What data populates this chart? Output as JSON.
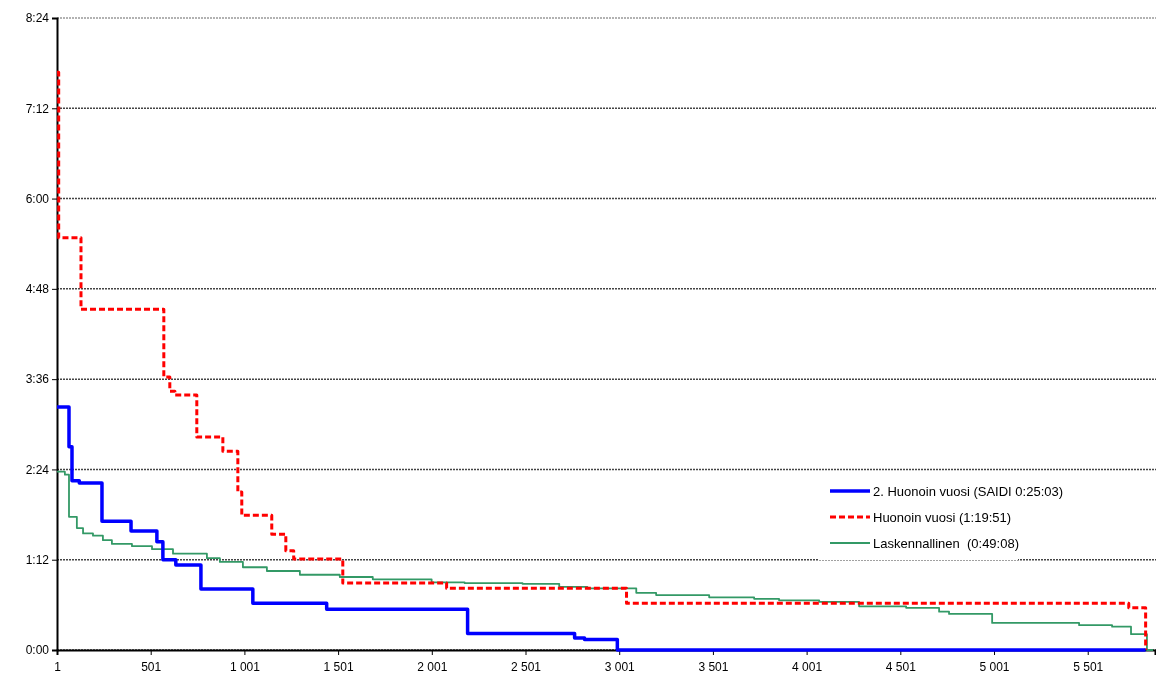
{
  "chart_data": {
    "type": "step",
    "xlim": [
      1,
      5860
    ],
    "ylim": [
      0,
      8.4
    ],
    "xticks": [
      1,
      501,
      {
        "value": 1001,
        "label": "1 001"
      },
      {
        "value": 1501,
        "label": "1 501"
      },
      {
        "value": 2001,
        "label": "2 001"
      },
      {
        "value": 2501,
        "label": "2 501"
      },
      {
        "value": 3001,
        "label": "3 001"
      },
      {
        "value": 3501,
        "label": "3 501"
      },
      {
        "value": 4001,
        "label": "4 001"
      },
      {
        "value": 4501,
        "label": "4 501"
      },
      {
        "value": 5001,
        "label": "5 001"
      },
      {
        "value": 5501,
        "label": "5 501"
      }
    ],
    "yticks": [
      {
        "value": 0,
        "label": "0:00"
      },
      {
        "value": 1.2,
        "label": "1:12"
      },
      {
        "value": 2.4,
        "label": "2:24"
      },
      {
        "value": 3.6,
        "label": "3:36"
      },
      {
        "value": 4.8,
        "label": "4:48"
      },
      {
        "value": 6,
        "label": "6:00"
      },
      {
        "value": 7.2,
        "label": "7:12"
      },
      {
        "value": 8.4,
        "label": "8:24"
      }
    ],
    "grid": "y",
    "legend": "right",
    "series": [
      {
        "name": "2. Huonoin vuosi (SAIDI 0:25:03)",
        "color": "#0000ff",
        "line_style": "solid",
        "x": [
          1,
          65,
          81,
          120,
          241,
          396,
          534,
          566,
          635,
          769,
          1046,
          1440,
          2192,
          2763,
          2816,
          2991,
          5810
        ],
        "values": [
          3.23,
          2.7,
          2.25,
          2.22,
          1.71,
          1.58,
          1.44,
          1.2,
          1.13,
          0.81,
          0.62,
          0.54,
          0.22,
          0.16,
          0.14,
          0,
          0
        ]
      },
      {
        "name": "Huonoin vuosi (1:19:51)",
        "color": "#ff0000",
        "line_style": "dashed",
        "x": [
          1,
          10,
          129,
          571,
          603,
          630,
          747,
          886,
          966,
          987,
          1147,
          1222,
          1264,
          1526,
          2080,
          3040,
          5720,
          5810
        ],
        "values": [
          7.68,
          5.48,
          4.53,
          3.63,
          3.44,
          3.39,
          2.83,
          2.64,
          2.1,
          1.79,
          1.54,
          1.32,
          1.21,
          0.89,
          0.82,
          0.62,
          0.56,
          0
        ]
      },
      {
        "name": "Laskennallinen  (0:49:08)",
        "color": "#339966",
        "line_style": "solid",
        "x": [
          1,
          43,
          65,
          107,
          140,
          193,
          246,
          294,
          401,
          508,
          620,
          801,
          870,
          993,
          1121,
          1297,
          1510,
          1686,
          2000,
          2176,
          2485,
          2681,
          2831,
          3092,
          3198,
          3481,
          3721,
          3854,
          4068,
          4281,
          4532,
          4708,
          4761,
          4991,
          5455,
          5631,
          5732,
          5817,
          5850
        ],
        "values": [
          2.37,
          2.33,
          1.77,
          1.62,
          1.55,
          1.52,
          1.46,
          1.41,
          1.38,
          1.34,
          1.28,
          1.22,
          1.17,
          1.1,
          1.05,
          1,
          0.97,
          0.94,
          0.9,
          0.89,
          0.88,
          0.84,
          0.82,
          0.76,
          0.73,
          0.7,
          0.68,
          0.66,
          0.64,
          0.58,
          0.56,
          0.51,
          0.48,
          0.36,
          0.33,
          0.31,
          0.21,
          0,
          0
        ]
      }
    ]
  }
}
